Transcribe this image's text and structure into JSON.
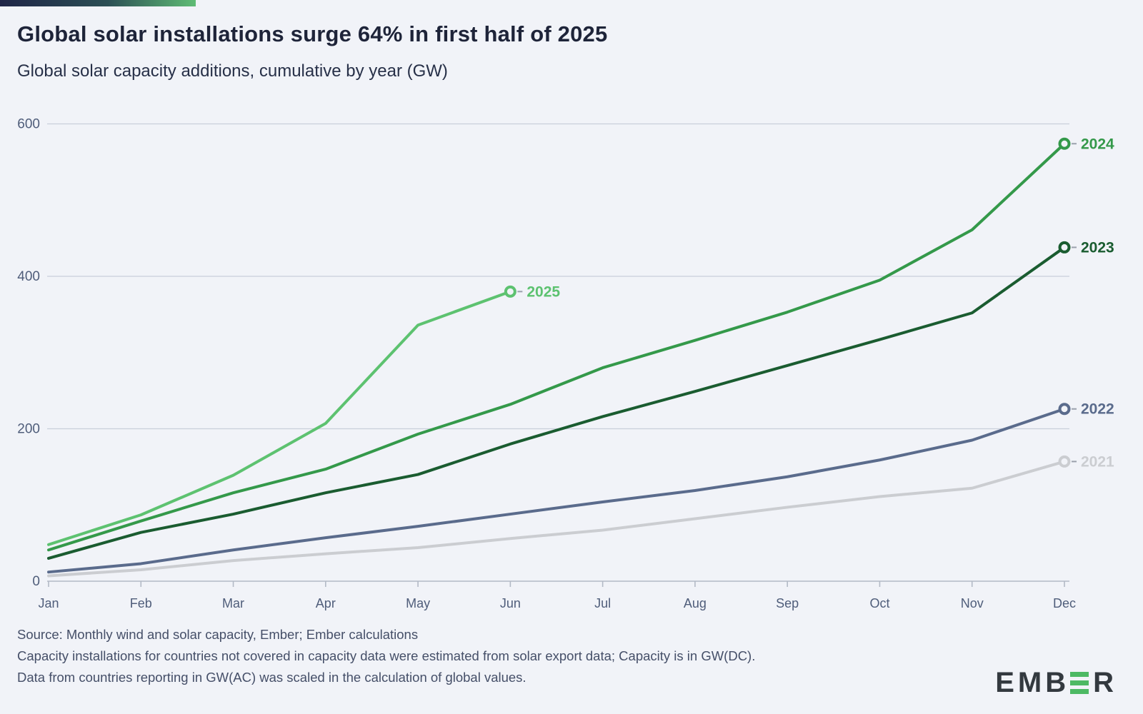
{
  "header": {
    "title": "Global solar installations surge 64% in first half of 2025",
    "subtitle": "Global solar capacity additions, cumulative by year (GW)"
  },
  "footer": {
    "source_line1": "Source: Monthly wind and solar capacity, Ember; Ember calculations",
    "source_line2": "Capacity installations for countries not covered in capacity data were estimated from solar export data; Capacity is in GW(DC).",
    "source_line3": "Data from countries reporting in GW(AC) was scaled in the calculation of global values.",
    "logo": {
      "left": "EMB",
      "right": "R"
    }
  },
  "colors": {
    "background": "#f1f3f8",
    "title_text": "#1e2439",
    "axis_text": "#4f5d7a",
    "gridline": "#c9cfdb",
    "axis_line": "#b3bac6",
    "endpoint_dash": "#9aa0ac",
    "logo_text": "#33393f",
    "logo_green": "#4db964",
    "brand_gradient_start": "#1f2547",
    "brand_gradient_end": "#5fbc75"
  },
  "chart_data": {
    "type": "line",
    "title": "Global solar installations surge 64% in first half of 2025",
    "subtitle": "Global solar capacity additions, cumulative by year (GW)",
    "unit": "GW",
    "x": [
      "Jan",
      "Feb",
      "Mar",
      "Apr",
      "May",
      "Jun",
      "Jul",
      "Aug",
      "Sep",
      "Oct",
      "Nov",
      "Dec"
    ],
    "ylim": [
      0,
      600
    ],
    "yticks": [
      0,
      200,
      400,
      600
    ],
    "grid": "horizontal",
    "legend_position": "line-end-labels",
    "series": [
      {
        "name": "2021",
        "color": "#cbcdd1",
        "values": [
          7,
          15,
          27,
          36,
          44,
          56,
          67,
          82,
          97,
          111,
          122,
          157
        ]
      },
      {
        "name": "2022",
        "color": "#5a6b8c",
        "values": [
          12,
          23,
          41,
          57,
          72,
          88,
          104,
          119,
          137,
          159,
          185,
          226
        ]
      },
      {
        "name": "2023",
        "color": "#1a5c30",
        "values": [
          30,
          64,
          88,
          116,
          140,
          180,
          216,
          249,
          283,
          317,
          352,
          438
        ]
      },
      {
        "name": "2024",
        "color": "#34994a",
        "values": [
          41,
          79,
          116,
          147,
          193,
          232,
          280,
          316,
          353,
          395,
          461,
          574
        ]
      },
      {
        "name": "2025",
        "color": "#5dc270",
        "values": [
          48,
          87,
          139,
          207,
          336,
          380
        ]
      }
    ]
  }
}
